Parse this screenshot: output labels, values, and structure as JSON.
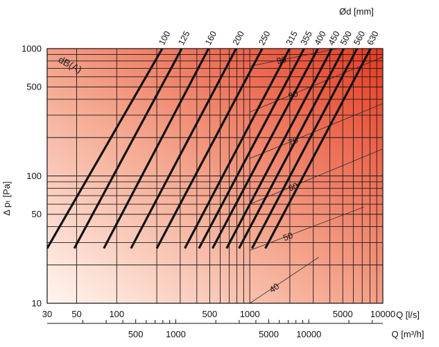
{
  "chart_data": {
    "type": "line",
    "title": "",
    "xlabel": "Q [l/s]",
    "x2label": "Q [m³/h]",
    "ylabel": "Δ pₜ [Pa]",
    "diameter_label": "Ød [mm]",
    "noise_label": "dB(A)",
    "x_scale": "log",
    "y_scale": "log",
    "xlim": [
      30,
      10000
    ],
    "ylim": [
      10,
      1000
    ],
    "x_ticks": [
      "30",
      "50",
      "100",
      "500",
      "1000",
      "5000",
      "10000"
    ],
    "x_tick_values": [
      30,
      50,
      100,
      500,
      1000,
      5000,
      10000
    ],
    "x_minor_grid": [
      200,
      300,
      400,
      600,
      700,
      800,
      900,
      2000,
      3000,
      4000,
      6000,
      7000,
      8000,
      9000
    ],
    "x2_ticks": [
      "500",
      "1000",
      "5000",
      "10000"
    ],
    "x2_tick_values": [
      500,
      1000,
      5000,
      10000
    ],
    "x2_minor": [
      200,
      300,
      400,
      600,
      700,
      800,
      900,
      2000,
      3000,
      4000,
      6000,
      7000,
      8000,
      9000,
      20000,
      30000
    ],
    "y_ticks": [
      "10",
      "50",
      "100",
      "500",
      "1000"
    ],
    "y_tick_values": [
      10,
      50,
      100,
      500,
      1000
    ],
    "y_minor_grid": [
      20,
      30,
      40,
      60,
      70,
      80,
      90,
      200,
      300,
      400,
      600,
      700,
      800,
      900
    ],
    "grid": true,
    "duct_series": [
      {
        "name": "100",
        "points": [
          [
            30,
            27
          ],
          [
            220,
            1000
          ]
        ]
      },
      {
        "name": "125",
        "points": [
          [
            48,
            27
          ],
          [
            308,
            1000
          ]
        ]
      },
      {
        "name": "160",
        "points": [
          [
            80,
            27
          ],
          [
            490,
            1000
          ]
        ]
      },
      {
        "name": "200",
        "points": [
          [
            128,
            27
          ],
          [
            790,
            1000
          ]
        ]
      },
      {
        "name": "250",
        "points": [
          [
            200,
            27
          ],
          [
            1240,
            1000
          ]
        ]
      },
      {
        "name": "315",
        "points": [
          [
            325,
            27
          ],
          [
            1990,
            1000
          ]
        ]
      },
      {
        "name": "355",
        "points": [
          [
            415,
            27
          ],
          [
            2560,
            1000
          ]
        ]
      },
      {
        "name": "400",
        "points": [
          [
            525,
            27
          ],
          [
            3250,
            1000
          ]
        ]
      },
      {
        "name": "450",
        "points": [
          [
            670,
            27
          ],
          [
            4130,
            1000
          ]
        ]
      },
      {
        "name": "500",
        "points": [
          [
            830,
            27
          ],
          [
            5090,
            1000
          ]
        ]
      },
      {
        "name": "560",
        "points": [
          [
            1040,
            27
          ],
          [
            6400,
            1000
          ]
        ]
      },
      {
        "name": "630",
        "points": [
          [
            1310,
            27
          ],
          [
            8080,
            1000
          ]
        ]
      }
    ],
    "noise_series": [
      {
        "name": "40",
        "points": [
          [
            1000,
            10
          ],
          [
            3300,
            23
          ]
        ]
      },
      {
        "name": "50",
        "points": [
          [
            1000,
            26
          ],
          [
            7200,
            57
          ]
        ]
      },
      {
        "name": "60",
        "points": [
          [
            1000,
            60
          ],
          [
            10000,
            163
          ]
        ]
      },
      {
        "name": "70",
        "points": [
          [
            1000,
            137
          ],
          [
            10000,
            370
          ]
        ]
      },
      {
        "name": "80",
        "points": [
          [
            1000,
            317
          ],
          [
            10000,
            860
          ]
        ]
      },
      {
        "name": "90",
        "points": [
          [
            1000,
            727
          ],
          [
            4600,
            1000
          ]
        ]
      }
    ],
    "background_gradient": {
      "low": "#fff6f0",
      "high": "#e53a22"
    }
  }
}
